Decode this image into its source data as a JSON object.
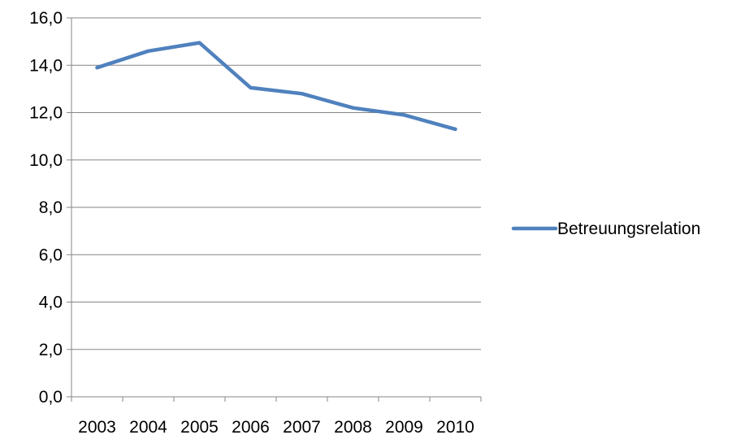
{
  "chart_data": {
    "type": "line",
    "categories": [
      "2003",
      "2004",
      "2005",
      "2006",
      "2007",
      "2008",
      "2009",
      "2010"
    ],
    "series": [
      {
        "name": "Betreuungsrelation",
        "values": [
          13.9,
          14.6,
          14.95,
          13.05,
          12.8,
          12.2,
          11.9,
          11.3
        ]
      }
    ],
    "ylim": [
      0,
      16
    ],
    "y_ticks": [
      "0,0",
      "2,0",
      "4,0",
      "6,0",
      "8,0",
      "10,0",
      "12,0",
      "14,0",
      "16,0"
    ],
    "y_tick_values": [
      0,
      2,
      4,
      6,
      8,
      10,
      12,
      14,
      16
    ],
    "grid": true,
    "legend_position": "right",
    "series_color": "#4f81bd",
    "gridline_color": "#868686",
    "axis_color": "#868686"
  }
}
